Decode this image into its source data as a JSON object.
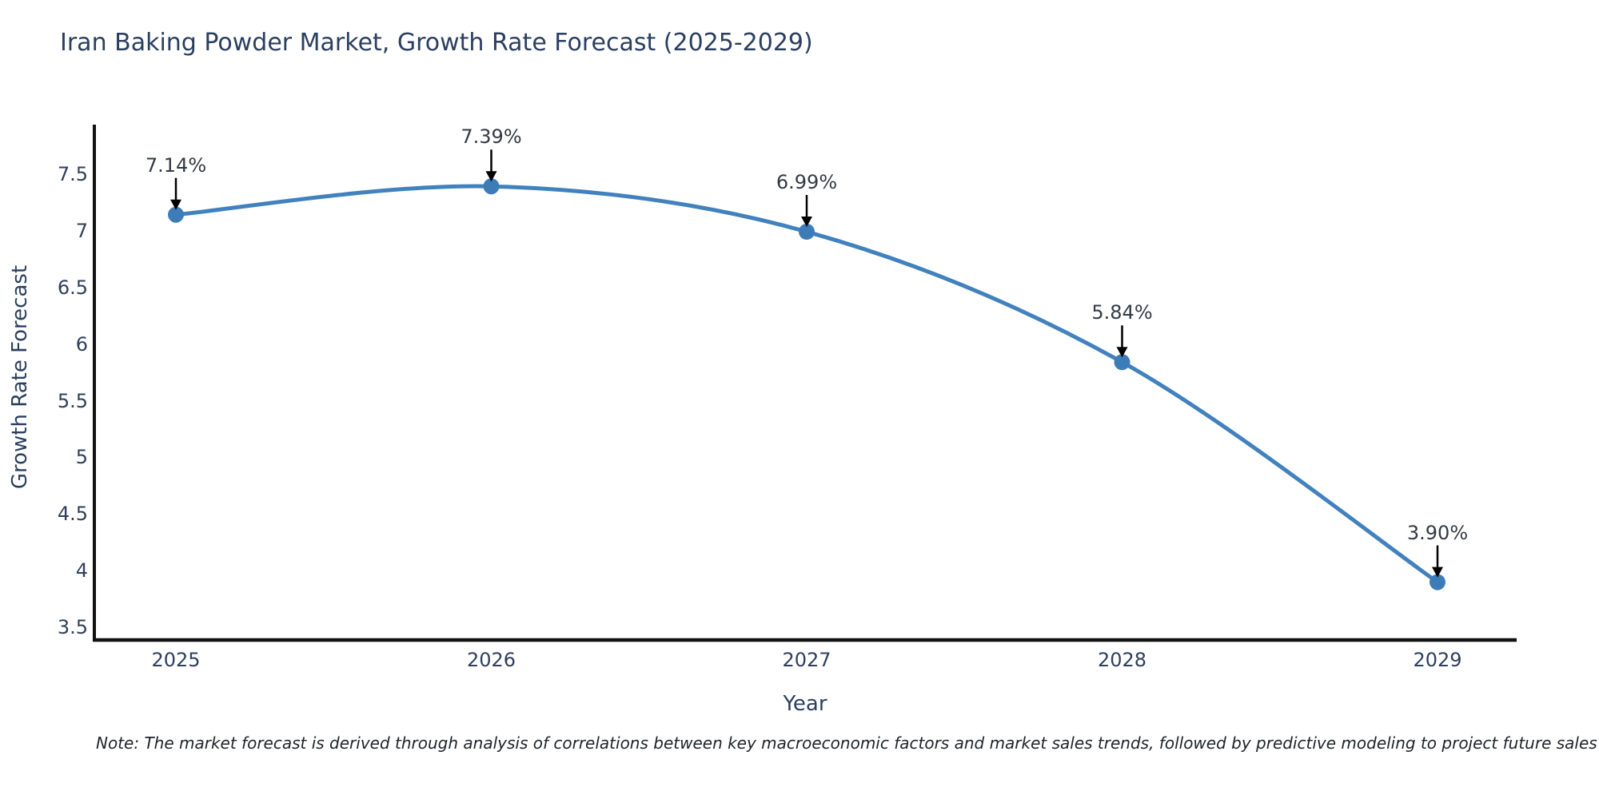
{
  "note": "Note: The market forecast is derived through analysis of correlations between key macroeconomic factors and market sales trends, followed by predictive modeling to project future sales",
  "chart_data": {
    "type": "line",
    "title": "Iran Baking Powder Market, Growth Rate Forecast (2025-2029)",
    "xlabel": "Year",
    "ylabel": "Growth Rate Forecast",
    "categories": [
      "2025",
      "2026",
      "2027",
      "2028",
      "2029"
    ],
    "values": [
      7.14,
      7.39,
      6.99,
      5.84,
      3.9
    ],
    "point_labels": [
      "7.14%",
      "7.39%",
      "6.99%",
      "5.84%",
      "3.90%"
    ],
    "yticks": [
      "7.5",
      "7",
      "6.5",
      "6",
      "5.5",
      "5",
      "4.5",
      "4",
      "3.5"
    ],
    "ytick_values": [
      7.5,
      7.0,
      6.5,
      6.0,
      5.5,
      5.0,
      4.5,
      4.0,
      3.5
    ],
    "ylim": [
      3.39,
      7.92
    ],
    "line_shape": "spline",
    "grid": false,
    "legend_position": "none",
    "colors": {
      "line": "#4181bd",
      "marker": "#3e7cb8",
      "axis_line": "#111111",
      "title_text": "#2a3f5f",
      "tick_text": "#2f3f5c",
      "annotation_text": "#333a45",
      "arrow": "#000000"
    }
  }
}
